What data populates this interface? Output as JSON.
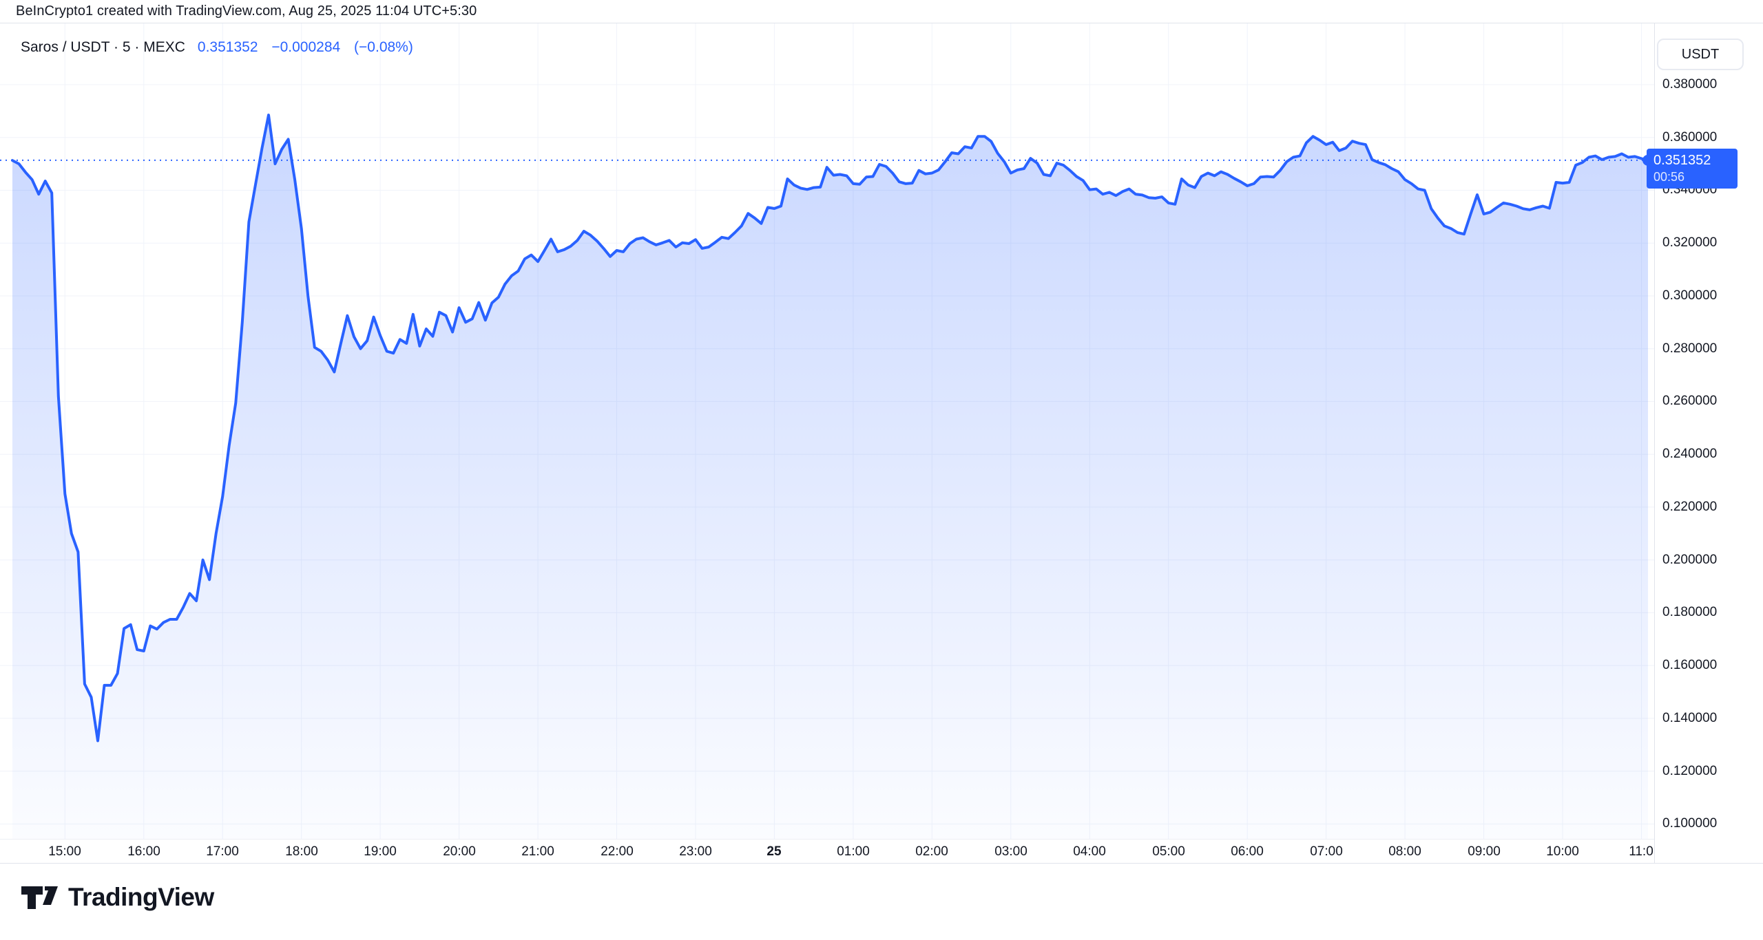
{
  "header": {
    "attribution": "BeInCrypto1 created with TradingView.com, Aug 25, 2025 11:04 UTC+5:30"
  },
  "legend": {
    "symbol": "Saros / USDT",
    "sep1": "·",
    "interval": "5",
    "sep2": "·",
    "exchange": "MEXC",
    "last_price": "0.351352",
    "change_abs": "−0.000284",
    "change_pct": "(−0.08%)"
  },
  "price_axis": {
    "currency_button_label": "USDT",
    "ticks": [
      "0.380000",
      "0.360000",
      "0.340000",
      "0.320000",
      "0.300000",
      "0.280000",
      "0.260000",
      "0.240000",
      "0.220000",
      "0.200000",
      "0.180000",
      "0.160000",
      "0.140000",
      "0.120000",
      "0.100000"
    ],
    "badge": {
      "price": "0.351352",
      "countdown": "00:56"
    }
  },
  "time_axis": {
    "ticks": [
      {
        "label": "15:00",
        "emphasis": false
      },
      {
        "label": "16:00",
        "emphasis": false
      },
      {
        "label": "17:00",
        "emphasis": false
      },
      {
        "label": "18:00",
        "emphasis": false
      },
      {
        "label": "19:00",
        "emphasis": false
      },
      {
        "label": "20:00",
        "emphasis": false
      },
      {
        "label": "21:00",
        "emphasis": false
      },
      {
        "label": "22:00",
        "emphasis": false
      },
      {
        "label": "23:00",
        "emphasis": false
      },
      {
        "label": "25",
        "emphasis": true
      },
      {
        "label": "01:00",
        "emphasis": false
      },
      {
        "label": "02:00",
        "emphasis": false
      },
      {
        "label": "03:00",
        "emphasis": false
      },
      {
        "label": "04:00",
        "emphasis": false
      },
      {
        "label": "05:00",
        "emphasis": false
      },
      {
        "label": "06:00",
        "emphasis": false
      },
      {
        "label": "07:00",
        "emphasis": false
      },
      {
        "label": "08:00",
        "emphasis": false
      },
      {
        "label": "09:00",
        "emphasis": false
      },
      {
        "label": "10:00",
        "emphasis": false
      },
      {
        "label": "11:0",
        "emphasis": false
      }
    ]
  },
  "footer": {
    "logo_text": "TradingView"
  },
  "colors": {
    "accent_blue": "#2962ff",
    "text": "#131722",
    "grid": "#f0f3fa",
    "divider": "#e0e3eb",
    "area_top": "rgba(41,98,255,0.25)",
    "area_bottom": "rgba(41,98,255,0.02)",
    "badge_bg": "#2962ff",
    "background": "#ffffff"
  },
  "chart_data": {
    "type": "area",
    "title": "Saros / USDT · 5 · MEXC",
    "symbol": "Saros / USDT",
    "interval_label": "5",
    "exchange": "MEXC",
    "x_start": "14:20",
    "x_end": "11:04",
    "x_interval_minutes": 5,
    "x_hour_tick_labels": [
      "15:00",
      "16:00",
      "17:00",
      "18:00",
      "19:00",
      "20:00",
      "21:00",
      "22:00",
      "23:00",
      "25",
      "01:00",
      "02:00",
      "03:00",
      "04:00",
      "05:00",
      "06:00",
      "07:00",
      "08:00",
      "09:00",
      "10:00",
      "11:0"
    ],
    "y_ticks": [
      0.38,
      0.36,
      0.34,
      0.32,
      0.3,
      0.28,
      0.26,
      0.24,
      0.22,
      0.2,
      0.18,
      0.16,
      0.14,
      0.12,
      0.1
    ],
    "ylim": [
      0.0944,
      0.4032
    ],
    "grid": true,
    "legend_position": "top-left",
    "current_price": 0.351352,
    "change_abs": -0.000284,
    "change_pct": -0.08,
    "countdown": "00:56",
    "values": [
      0.3513,
      0.35,
      0.3468,
      0.344,
      0.3385,
      0.3435,
      0.339,
      0.262,
      0.225,
      0.21,
      0.203,
      0.153,
      0.148,
      0.1315,
      0.1525,
      0.1525,
      0.157,
      0.174,
      0.1755,
      0.166,
      0.1655,
      0.175,
      0.1738,
      0.1763,
      0.1775,
      0.1775,
      0.182,
      0.1873,
      0.1845,
      0.2,
      0.1925,
      0.21,
      0.224,
      0.2435,
      0.2595,
      0.29,
      0.328,
      0.342,
      0.356,
      0.3685,
      0.35,
      0.3555,
      0.3593,
      0.344,
      0.3255,
      0.3,
      0.2805,
      0.279,
      0.2757,
      0.2712,
      0.282,
      0.2925,
      0.2845,
      0.28,
      0.283,
      0.292,
      0.285,
      0.279,
      0.2783,
      0.2835,
      0.282,
      0.293,
      0.281,
      0.2875,
      0.2847,
      0.2938,
      0.2925,
      0.2863,
      0.2955,
      0.29,
      0.2913,
      0.2975,
      0.2908,
      0.2973,
      0.2995,
      0.3045,
      0.3076,
      0.3094,
      0.314,
      0.3155,
      0.313,
      0.3172,
      0.3215,
      0.3167,
      0.3175,
      0.3188,
      0.321,
      0.3245,
      0.323,
      0.3208,
      0.318,
      0.3149,
      0.3172,
      0.3167,
      0.3198,
      0.3215,
      0.322,
      0.3205,
      0.3193,
      0.3201,
      0.321,
      0.3185,
      0.3201,
      0.3198,
      0.3213,
      0.318,
      0.3185,
      0.3203,
      0.3222,
      0.3217,
      0.324,
      0.3265,
      0.3312,
      0.3295,
      0.3274,
      0.3335,
      0.3331,
      0.334,
      0.3443,
      0.342,
      0.3408,
      0.3403,
      0.341,
      0.3412,
      0.3487,
      0.3457,
      0.346,
      0.3455,
      0.3425,
      0.3423,
      0.345,
      0.3452,
      0.3498,
      0.349,
      0.3465,
      0.3432,
      0.3425,
      0.3427,
      0.3475,
      0.3462,
      0.3465,
      0.3477,
      0.3508,
      0.3542,
      0.3538,
      0.3565,
      0.356,
      0.3604,
      0.3604,
      0.3585,
      0.354,
      0.3508,
      0.3465,
      0.3477,
      0.3482,
      0.3521,
      0.3503,
      0.346,
      0.3455,
      0.3503,
      0.3495,
      0.3475,
      0.3452,
      0.3437,
      0.3402,
      0.3405,
      0.3385,
      0.3392,
      0.338,
      0.3395,
      0.3405,
      0.3385,
      0.3382,
      0.3372,
      0.337,
      0.3375,
      0.3352,
      0.3347,
      0.3443,
      0.342,
      0.341,
      0.3452,
      0.3465,
      0.3455,
      0.347,
      0.346,
      0.3445,
      0.3432,
      0.3417,
      0.3425,
      0.345,
      0.3452,
      0.345,
      0.3475,
      0.3508,
      0.3525,
      0.353,
      0.358,
      0.3604,
      0.359,
      0.3573,
      0.3582,
      0.355,
      0.356,
      0.3586,
      0.3578,
      0.3573,
      0.3516,
      0.3505,
      0.3497,
      0.3482,
      0.347,
      0.344,
      0.3425,
      0.3405,
      0.34,
      0.333,
      0.3295,
      0.3265,
      0.3255,
      0.324,
      0.3234,
      0.331,
      0.3383,
      0.331,
      0.3317,
      0.3335,
      0.3352,
      0.3347,
      0.334,
      0.333,
      0.3326,
      0.3334,
      0.334,
      0.3332,
      0.343,
      0.3427,
      0.343,
      0.3495,
      0.3505,
      0.3525,
      0.353,
      0.3516,
      0.3525,
      0.3528,
      0.3538,
      0.3525,
      0.3528,
      0.352,
      0.351352
    ]
  }
}
